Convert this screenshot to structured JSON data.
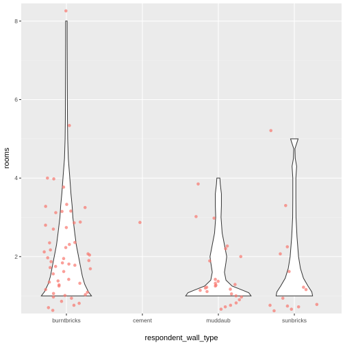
{
  "chart_data": {
    "type": "violin",
    "xlabel": "respondent_wall_type",
    "ylabel": "rooms",
    "categories": [
      "burntbricks",
      "cement",
      "muddaub",
      "sunbricks"
    ],
    "ylim": [
      0.55,
      8.45
    ],
    "yticks": [
      2,
      4,
      6,
      8
    ],
    "grid": true,
    "colors": {
      "panel": "#EBEBEB",
      "grid_major": "#FFFFFF",
      "points": "#F8766D",
      "violin": "#333333"
    },
    "violins": [
      {
        "category": "burntbricks",
        "profile": [
          [
            1,
            0.33
          ],
          [
            1.1,
            0.29
          ],
          [
            1.3,
            0.24
          ],
          [
            1.5,
            0.21
          ],
          [
            1.7,
            0.19
          ],
          [
            2,
            0.16
          ],
          [
            2.3,
            0.13
          ],
          [
            2.6,
            0.11
          ],
          [
            3,
            0.085
          ],
          [
            3.3,
            0.075
          ],
          [
            3.6,
            0.06
          ],
          [
            4,
            0.045
          ],
          [
            4.5,
            0.025
          ],
          [
            5,
            0.017
          ],
          [
            5.5,
            0.014
          ],
          [
            6,
            0.013
          ],
          [
            6.5,
            0.012
          ],
          [
            7,
            0.011
          ],
          [
            7.5,
            0.01
          ],
          [
            8,
            0.01
          ]
        ]
      },
      {
        "category": "muddaub",
        "profile": [
          [
            1,
            0.43
          ],
          [
            1.08,
            0.4
          ],
          [
            1.15,
            0.31
          ],
          [
            1.25,
            0.18
          ],
          [
            1.4,
            0.1
          ],
          [
            1.6,
            0.08
          ],
          [
            1.85,
            0.1
          ],
          [
            2,
            0.11
          ],
          [
            2.3,
            0.08
          ],
          [
            2.6,
            0.05
          ],
          [
            3,
            0.035
          ],
          [
            3.3,
            0.04
          ],
          [
            3.6,
            0.04
          ],
          [
            3.85,
            0.025
          ],
          [
            4,
            0.02
          ]
        ]
      },
      {
        "category": "sunbricks",
        "profile": [
          [
            1,
            0.24
          ],
          [
            1.1,
            0.23
          ],
          [
            1.25,
            0.18
          ],
          [
            1.45,
            0.12
          ],
          [
            1.7,
            0.08
          ],
          [
            2,
            0.055
          ],
          [
            2.5,
            0.035
          ],
          [
            3,
            0.022
          ],
          [
            3.5,
            0.02
          ],
          [
            4,
            0.02
          ],
          [
            4.3,
            0.03
          ],
          [
            4.5,
            0.012
          ],
          [
            4.75,
            0.008
          ],
          [
            5,
            0.05
          ]
        ]
      }
    ],
    "points": [
      {
        "category": "burntbricks",
        "values": [
          8.26,
          5.34,
          4.0,
          3.98,
          3.77,
          3.33,
          3.28,
          3.25,
          3.16,
          3.15,
          3.12,
          2.88,
          2.86,
          2.8,
          2.74,
          2.7,
          2.36,
          2.35,
          2.31,
          2.23,
          2.17,
          2.12,
          2.07,
          2.04,
          1.97,
          1.95,
          1.9,
          1.87,
          1.84,
          1.81,
          1.78,
          1.75,
          1.72,
          1.69,
          1.62,
          1.56,
          1.42,
          1.38,
          1.35,
          1.32,
          1.28,
          1.25,
          1.16,
          1.09,
          1.06,
          1.03,
          1.01,
          0.97,
          0.94,
          0.86,
          0.81,
          0.76,
          0.7,
          0.63
        ]
      },
      {
        "category": "cement",
        "values": [
          2.87
        ]
      },
      {
        "category": "muddaub",
        "values": [
          3.85,
          3.02,
          2.98,
          2.27,
          2.2,
          2.0,
          1.89,
          1.42,
          1.37,
          1.32,
          1.29,
          1.27,
          1.25,
          1.22,
          1.2,
          1.17,
          1.14,
          1.11,
          1.05,
          1.0,
          0.97,
          0.9,
          0.82,
          0.76,
          0.72,
          0.66
        ]
      },
      {
        "category": "sunbricks",
        "values": [
          5.21,
          3.3,
          2.25,
          2.07,
          1.62,
          1.22,
          1.16,
          0.94,
          0.78,
          0.76,
          0.74,
          0.72,
          0.66,
          0.62
        ]
      }
    ]
  }
}
